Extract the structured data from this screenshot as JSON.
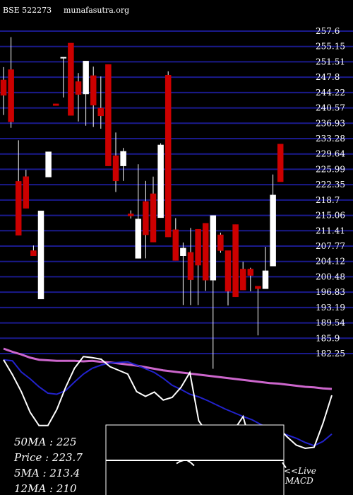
{
  "header": {
    "ticker": "BSE 522273",
    "site": "munafasutra.org"
  },
  "chart_data": [
    {
      "type": "candlestick",
      "title": "",
      "ylim": [
        180.0,
        260.0
      ],
      "y_ticks": [
        "257.6",
        "255.15",
        "251.51",
        "247.8",
        "244.22",
        "240.57",
        "236.93",
        "233.28",
        "229.64",
        "225.99",
        "222.35",
        "218.7",
        "215.06",
        "211.41",
        "207.77",
        "204.12",
        "200.48",
        "196.83",
        "193.19",
        "189.54",
        "185.9",
        "182.25"
      ],
      "grid": true,
      "candles": [
        {
          "o": 246.2,
          "h": 249.2,
          "l": 238.0,
          "c": 242.6
        },
        {
          "o": 248.6,
          "h": 256.2,
          "l": 235.0,
          "c": 236.4
        },
        {
          "o": 222.5,
          "h": 232.1,
          "l": 209.9,
          "c": 209.9
        },
        {
          "o": 223.6,
          "h": 225.2,
          "l": 216.2,
          "c": 216.2
        },
        {
          "o": 206.3,
          "h": 207.5,
          "l": 205.1,
          "c": 205.1
        },
        {
          "o": 195.0,
          "h": 215.6,
          "l": 195.0,
          "c": 215.6
        },
        {
          "o": 223.5,
          "h": 229.4,
          "l": 223.5,
          "c": 229.4
        },
        {
          "o": 240.6,
          "h": 240.6,
          "l": 240.2,
          "c": 240.2
        },
        {
          "o": 251.5,
          "h": 251.5,
          "l": 242.1,
          "c": 251.5
        },
        {
          "o": 254.8,
          "h": 254.8,
          "l": 237.9,
          "c": 237.9
        },
        {
          "o": 245.8,
          "h": 247.8,
          "l": 236.5,
          "c": 242.8
        },
        {
          "o": 242.9,
          "h": 250.6,
          "l": 235.5,
          "c": 250.6
        },
        {
          "o": 247.2,
          "h": 249.3,
          "l": 235.2,
          "c": 240.3
        },
        {
          "o": 239.6,
          "h": 247.0,
          "l": 234.8,
          "c": 237.8
        },
        {
          "o": 249.8,
          "h": 249.8,
          "l": 226.1,
          "c": 226.1
        },
        {
          "o": 228.5,
          "h": 233.9,
          "l": 220.0,
          "c": 222.6
        },
        {
          "o": 226.1,
          "h": 230.3,
          "l": 222.6,
          "c": 229.5
        },
        {
          "o": 214.9,
          "h": 215.7,
          "l": 213.8,
          "c": 214.4
        },
        {
          "o": 204.5,
          "h": 226.5,
          "l": 204.5,
          "c": 213.7
        },
        {
          "o": 217.8,
          "h": 222.6,
          "l": 204.5,
          "c": 210.0
        },
        {
          "o": 219.6,
          "h": 223.6,
          "l": 208.3,
          "c": 208.3
        },
        {
          "o": 214.0,
          "h": 231.4,
          "l": 214.0,
          "c": 231.0
        },
        {
          "o": 247.3,
          "h": 248.2,
          "l": 209.5,
          "c": 209.5
        },
        {
          "o": 211.2,
          "h": 213.9,
          "l": 204.0,
          "c": 204.0
        },
        {
          "o": 205.1,
          "h": 208.2,
          "l": 193.6,
          "c": 206.9
        },
        {
          "o": 205.9,
          "h": 211.6,
          "l": 193.6,
          "c": 199.5
        },
        {
          "o": 211.3,
          "h": 211.3,
          "l": 193.6,
          "c": 202.9
        },
        {
          "o": 212.7,
          "h": 212.7,
          "l": 196.9,
          "c": 199.4
        },
        {
          "o": 199.4,
          "h": 214.5,
          "l": 178.7,
          "c": 214.5
        },
        {
          "o": 210.0,
          "h": 210.5,
          "l": 205.8,
          "c": 206.3
        },
        {
          "o": 206.3,
          "h": 206.3,
          "l": 193.5,
          "c": 196.8
        },
        {
          "o": 212.4,
          "h": 212.4,
          "l": 195.5,
          "c": 195.5
        },
        {
          "o": 202.0,
          "h": 203.7,
          "l": 197.1,
          "c": 197.1
        },
        {
          "o": 202.0,
          "h": 202.3,
          "l": 196.8,
          "c": 200.5
        },
        {
          "o": 198.0,
          "h": 198.0,
          "l": 186.5,
          "c": 197.4
        },
        {
          "o": 197.4,
          "h": 207.2,
          "l": 197.4,
          "c": 201.6
        },
        {
          "o": 202.7,
          "h": 224.1,
          "l": 202.7,
          "c": 219.3
        },
        {
          "o": 231.2,
          "h": 231.2,
          "l": 222.4,
          "c": 222.4
        }
      ],
      "indicator_lines": [
        {
          "name": "50MA",
          "color": "#cc66cc",
          "values": [
            185.1,
            184.5,
            184.0,
            183.4,
            183.0,
            182.9,
            182.8,
            182.8,
            182.8,
            182.7,
            182.8,
            182.6,
            182.5,
            182.3,
            182.1,
            181.9,
            181.6,
            181.3,
            181.0,
            180.8,
            180.6,
            180.4,
            180.2,
            180.0,
            179.8,
            179.6,
            179.4,
            179.2,
            179.0,
            178.8,
            178.6,
            178.5,
            178.3,
            178.1,
            177.9,
            177.8,
            177.6,
            177.5
          ]
        },
        {
          "name": "12MA",
          "color": "#2222cc",
          "values": [
            183.0,
            182.8,
            180.7,
            179.4,
            177.9,
            176.7,
            176.5,
            177.2,
            178.8,
            180.3,
            181.4,
            182.0,
            182.4,
            182.5,
            182.6,
            182.0,
            181.3,
            180.6,
            179.5,
            178.2,
            177.4,
            176.5,
            176.0,
            175.3,
            174.5,
            173.7,
            173.0,
            172.3,
            171.7,
            170.8,
            170.0,
            169.4,
            168.8,
            168.2,
            167.4,
            166.8,
            167.6,
            169.0
          ]
        },
        {
          "name": "5MA",
          "color": "#ffffff",
          "values": [
            183.0,
            180.2,
            177.0,
            173.1,
            170.6,
            170.6,
            173.6,
            177.8,
            181.4,
            183.6,
            183.4,
            183.1,
            181.7,
            181.0,
            180.3,
            177.0,
            176.1,
            176.9,
            175.4,
            175.9,
            177.8,
            180.6,
            171.5,
            169.1,
            168.8,
            167.6,
            169.8,
            172.3,
            166.3,
            168.6,
            169.3,
            170.1,
            168.4,
            166.9,
            166.3,
            166.5,
            171.0,
            176.3
          ]
        }
      ]
    },
    {
      "type": "line",
      "title": "MACD",
      "series": [
        {
          "name": "MACD",
          "color": "#ffffff",
          "values": [
            null,
            null,
            null,
            null,
            null,
            null,
            null,
            null,
            null,
            null,
            null,
            null,
            null,
            null,
            null,
            null,
            null,
            null,
            null,
            null,
            0.15,
            0.05,
            0.0,
            0.0,
            0.1,
            0.25,
            null,
            null,
            null,
            null,
            null,
            null,
            null,
            null,
            null,
            null,
            null,
            null,
            null,
            null,
            null,
            null,
            null,
            null,
            null,
            null,
            null,
            null,
            null,
            null,
            0.1,
            0.35
          ]
        }
      ]
    }
  ],
  "legend": {
    "ma50": "50MA : 225",
    "price": "Price   : 223.7",
    "ma5": "5MA : 213.4",
    "ma12": "12MA : 210"
  },
  "macd_panel": {
    "label": "<<Live",
    "title": "MACD"
  }
}
